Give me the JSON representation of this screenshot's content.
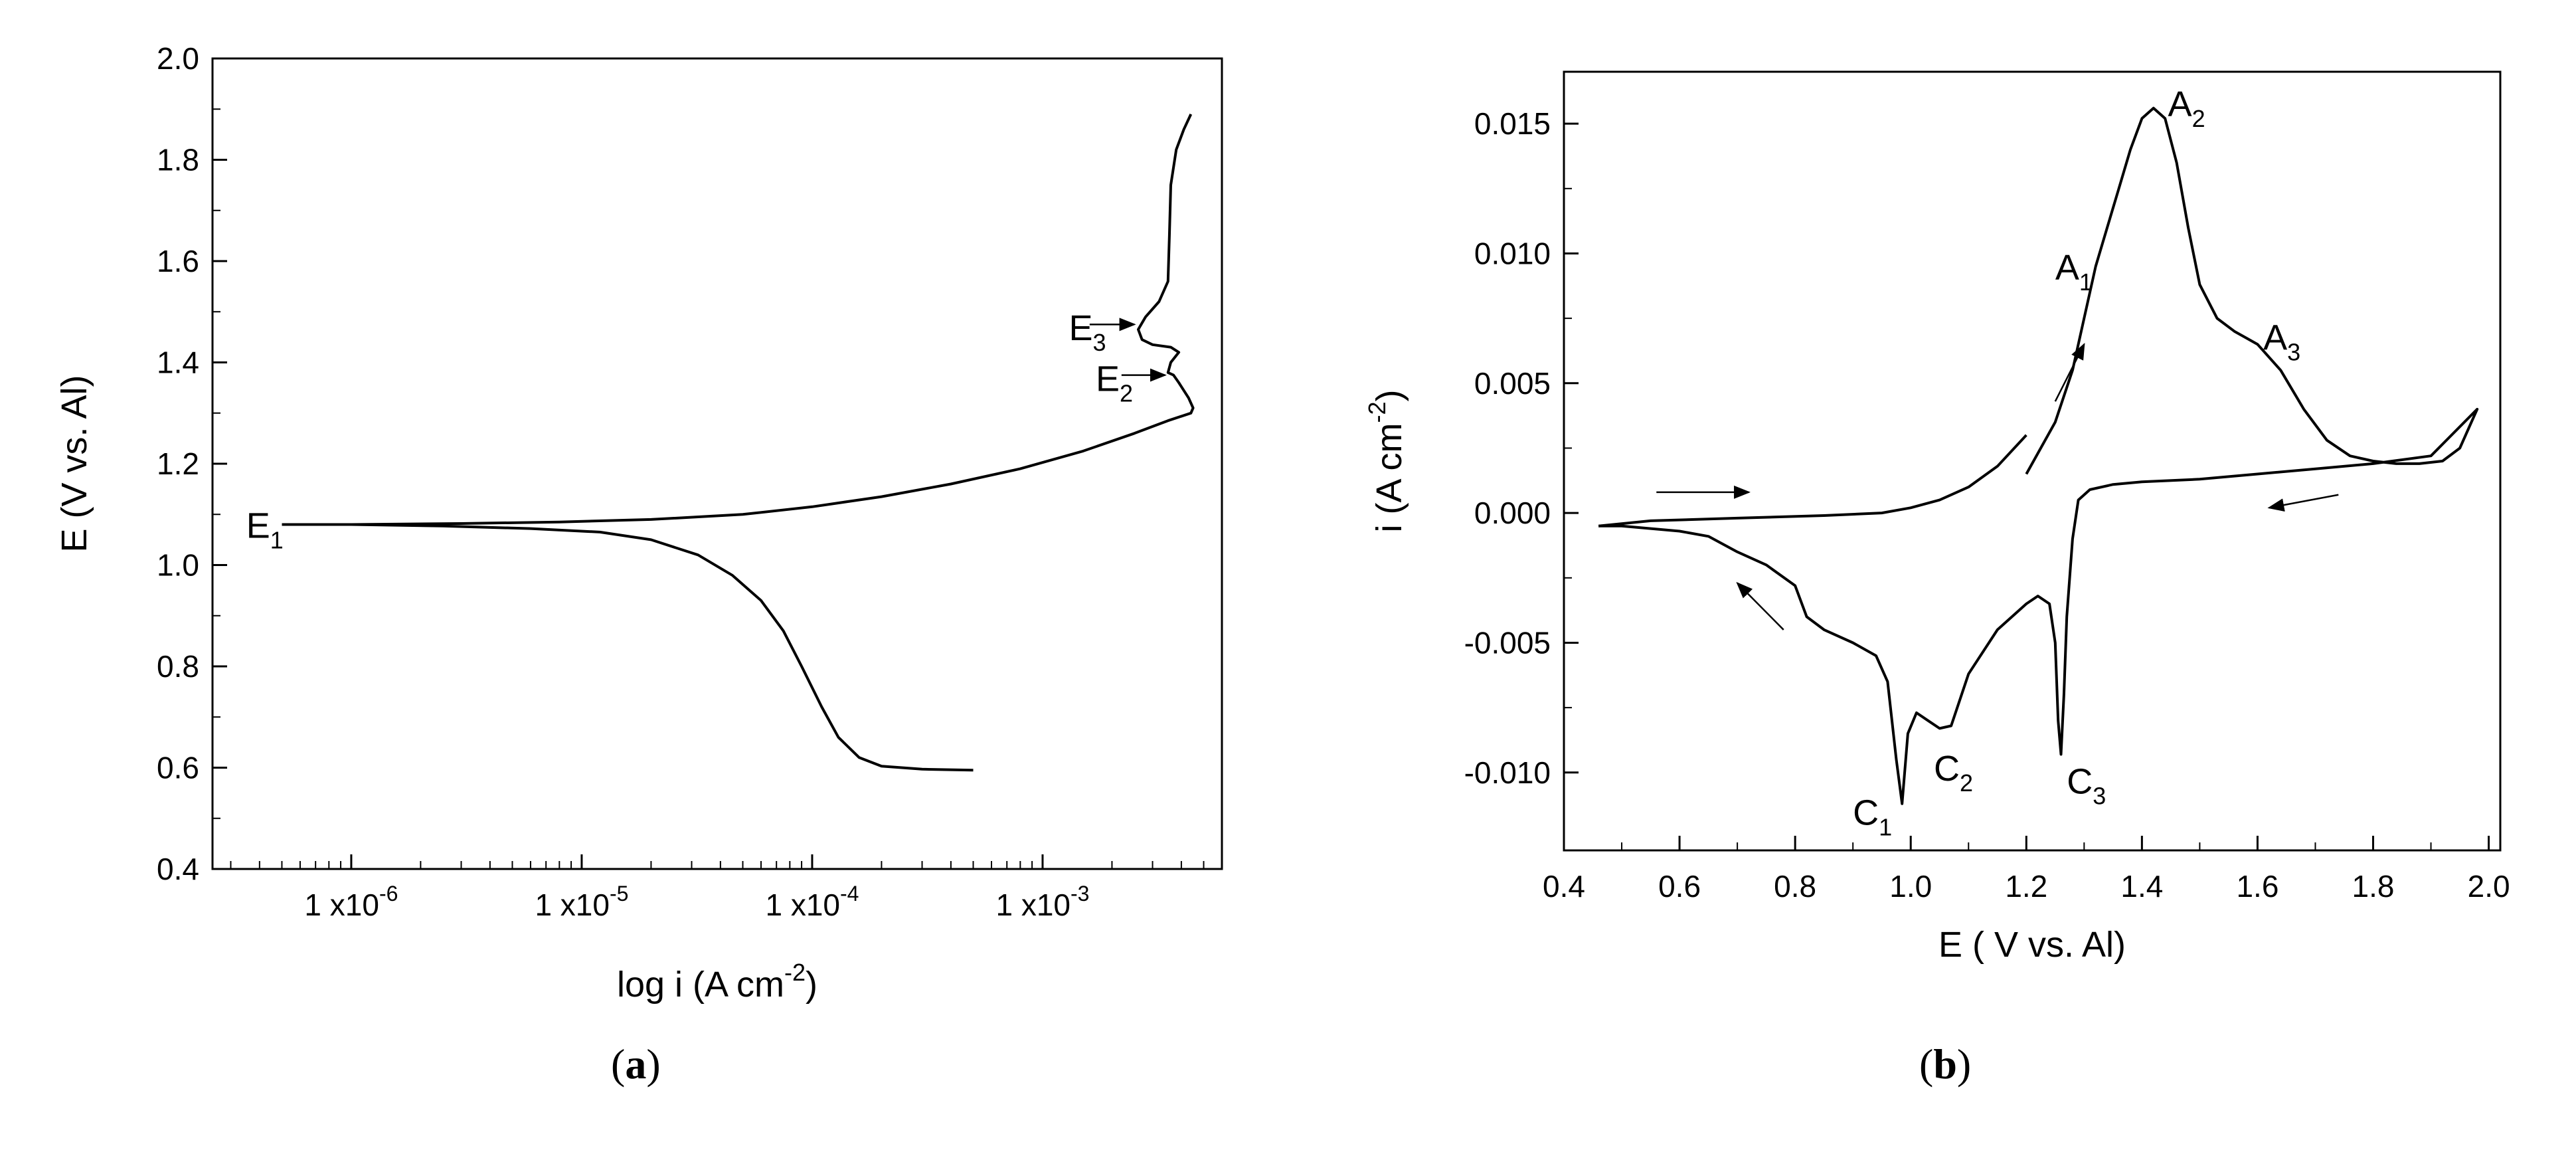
{
  "chart_data": [
    {
      "type": "line",
      "panel_label": "a",
      "xlabel": "log i (A cm",
      "xlabel_sup": "-2",
      "xlabel_tail": ")",
      "ylabel": "E (V vs. Al)",
      "xscale": "log",
      "xlim": [
        2.5e-07,
        0.006
      ],
      "ylim": [
        0.4,
        2.0
      ],
      "yticks": [
        "0.4",
        "0.6",
        "0.8",
        "1.0",
        "1.2",
        "1.4",
        "1.6",
        "1.8",
        "2.0"
      ],
      "xticks": [
        {
          "value": 1e-06,
          "base": "1 x10",
          "exp": "-6"
        },
        {
          "value": 1e-05,
          "base": "1 x10",
          "exp": "-5"
        },
        {
          "value": 0.0001,
          "base": "1 x10",
          "exp": "-4"
        },
        {
          "value": 0.001,
          "base": "1 x10",
          "exp": "-3"
        }
      ],
      "series": [
        {
          "points": [
            [
              0.0005,
              0.595
            ],
            [
              0.0003,
              0.597
            ],
            [
              0.0002,
              0.603
            ],
            [
              0.00016,
              0.62
            ],
            [
              0.00013,
              0.66
            ],
            [
              0.00011,
              0.72
            ],
            [
              9e-05,
              0.8
            ],
            [
              7.5e-05,
              0.87
            ],
            [
              6e-05,
              0.93
            ],
            [
              4.5e-05,
              0.98
            ],
            [
              3.2e-05,
              1.02
            ],
            [
              2e-05,
              1.05
            ],
            [
              1.2e-05,
              1.065
            ],
            [
              6e-06,
              1.072
            ],
            [
              2.5e-06,
              1.077
            ],
            [
              1e-06,
              1.08
            ],
            [
              5e-07,
              1.08
            ]
          ]
        },
        {
          "points": [
            [
              5e-07,
              1.08
            ],
            [
              1e-06,
              1.08
            ],
            [
              3e-06,
              1.082
            ],
            [
              8e-06,
              1.085
            ],
            [
              2e-05,
              1.09
            ],
            [
              5e-05,
              1.1
            ],
            [
              0.0001,
              1.115
            ],
            [
              0.0002,
              1.135
            ],
            [
              0.0004,
              1.16
            ],
            [
              0.0008,
              1.19
            ],
            [
              0.0015,
              1.225
            ],
            [
              0.0025,
              1.26
            ],
            [
              0.0035,
              1.285
            ],
            [
              0.0044,
              1.3
            ],
            [
              0.0045,
              1.31
            ],
            [
              0.0043,
              1.33
            ],
            [
              0.0039,
              1.36
            ],
            [
              0.0037,
              1.375
            ],
            [
              0.0035,
              1.38
            ],
            [
              0.0036,
              1.4
            ],
            [
              0.0039,
              1.42
            ],
            [
              0.0036,
              1.43
            ],
            [
              0.003,
              1.435
            ],
            [
              0.0027,
              1.445
            ],
            [
              0.0026,
              1.465
            ],
            [
              0.0028,
              1.49
            ],
            [
              0.0032,
              1.52
            ],
            [
              0.0035,
              1.56
            ],
            [
              0.00355,
              1.65
            ],
            [
              0.0036,
              1.75
            ],
            [
              0.0038,
              1.82
            ],
            [
              0.0041,
              1.86
            ],
            [
              0.0044,
              1.89
            ]
          ]
        }
      ],
      "annotations": [
        {
          "base": "E",
          "sub": "1",
          "x": 3.5e-07,
          "y": 1.08,
          "arrow": false
        },
        {
          "base": "E",
          "sub": "2",
          "x": 0.0017,
          "y": 1.37,
          "arrow": true,
          "arrow_from": [
            0.0022,
            1.375
          ],
          "arrow_to": [
            0.0034,
            1.375
          ]
        },
        {
          "base": "E",
          "sub": "3",
          "x": 0.0013,
          "y": 1.47,
          "arrow": true,
          "arrow_from": [
            0.0016,
            1.475
          ],
          "arrow_to": [
            0.0025,
            1.475
          ]
        }
      ]
    },
    {
      "type": "line",
      "panel_label": "b",
      "xlabel": "E ( V vs. Al)",
      "ylabel": "i (A cm",
      "ylabel_sup": "-2",
      "ylabel_tail": ")",
      "xlim": [
        0.4,
        2.02
      ],
      "ylim": [
        -0.013,
        0.017
      ],
      "xticks": [
        "0.4",
        "0.6",
        "0.8",
        "1.0",
        "1.2",
        "1.4",
        "1.6",
        "1.8",
        "2.0"
      ],
      "yticks": [
        "-0.010",
        "-0.005",
        "0.000",
        "0.005",
        "0.010",
        "0.015"
      ],
      "series": [
        {
          "points": [
            [
              0.46,
              -0.0005
            ],
            [
              0.55,
              -0.0003
            ],
            [
              0.7,
              -0.0002
            ],
            [
              0.85,
              -0.0001
            ],
            [
              0.95,
              0.0
            ],
            [
              1.0,
              0.0002
            ],
            [
              1.05,
              0.0005
            ],
            [
              1.1,
              0.001
            ],
            [
              1.15,
              0.0018
            ],
            [
              1.2,
              0.003
            ]
          ]
        },
        {
          "points": [
            [
              1.2,
              0.0015
            ],
            [
              1.25,
              0.0035
            ],
            [
              1.28,
              0.0055
            ],
            [
              1.3,
              0.0075
            ],
            [
              1.32,
              0.0095
            ],
            [
              1.34,
              0.011
            ],
            [
              1.36,
              0.0125
            ],
            [
              1.38,
              0.014
            ],
            [
              1.4,
              0.0152
            ],
            [
              1.42,
              0.0156
            ],
            [
              1.44,
              0.0152
            ],
            [
              1.46,
              0.0135
            ],
            [
              1.48,
              0.011
            ],
            [
              1.5,
              0.0088
            ],
            [
              1.53,
              0.0075
            ],
            [
              1.56,
              0.007
            ],
            [
              1.6,
              0.0065
            ],
            [
              1.64,
              0.0055
            ],
            [
              1.68,
              0.004
            ],
            [
              1.72,
              0.0028
            ],
            [
              1.76,
              0.0022
            ],
            [
              1.8,
              0.002
            ],
            [
              1.84,
              0.0019
            ],
            [
              1.88,
              0.0019
            ],
            [
              1.92,
              0.002
            ],
            [
              1.95,
              0.0025
            ],
            [
              1.98,
              0.004
            ],
            [
              1.9,
              0.0022
            ],
            [
              1.8,
              0.0019
            ],
            [
              1.7,
              0.0017
            ],
            [
              1.6,
              0.0015
            ],
            [
              1.5,
              0.0013
            ],
            [
              1.4,
              0.0012
            ],
            [
              1.35,
              0.0011
            ],
            [
              1.31,
              0.0009
            ],
            [
              1.29,
              0.0005
            ],
            [
              1.28,
              -0.001
            ],
            [
              1.27,
              -0.004
            ],
            [
              1.265,
              -0.007
            ],
            [
              1.26,
              -0.0093
            ],
            [
              1.255,
              -0.008
            ],
            [
              1.25,
              -0.005
            ],
            [
              1.24,
              -0.0035
            ],
            [
              1.22,
              -0.0032
            ],
            [
              1.2,
              -0.0035
            ],
            [
              1.15,
              -0.0045
            ],
            [
              1.1,
              -0.0062
            ],
            [
              1.07,
              -0.0082
            ],
            [
              1.05,
              -0.0083
            ],
            [
              1.03,
              -0.008
            ],
            [
              1.01,
              -0.0077
            ],
            [
              0.995,
              -0.0085
            ],
            [
              0.985,
              -0.0112
            ],
            [
              0.975,
              -0.0095
            ],
            [
              0.96,
              -0.0065
            ],
            [
              0.94,
              -0.0055
            ],
            [
              0.9,
              -0.005
            ],
            [
              0.85,
              -0.0045
            ],
            [
              0.82,
              -0.004
            ],
            [
              0.8,
              -0.0028
            ],
            [
              0.75,
              -0.002
            ],
            [
              0.7,
              -0.0015
            ],
            [
              0.65,
              -0.0009
            ],
            [
              0.6,
              -0.0007
            ],
            [
              0.55,
              -0.0006
            ],
            [
              0.5,
              -0.0005
            ],
            [
              0.46,
              -0.0005
            ]
          ]
        }
      ],
      "annotations": [
        {
          "base": "A",
          "sub": "1",
          "x": 1.25,
          "y": 0.0095
        },
        {
          "base": "A",
          "sub": "2",
          "x": 1.445,
          "y": 0.0158
        },
        {
          "base": "A",
          "sub": "3",
          "x": 1.61,
          "y": 0.0068
        },
        {
          "base": "C",
          "sub": "1",
          "x": 0.9,
          "y": -0.0115
        },
        {
          "base": "C",
          "sub": "2",
          "x": 1.04,
          "y": -0.0098
        },
        {
          "base": "C",
          "sub": "3",
          "x": 1.27,
          "y": -0.0103
        }
      ],
      "arrows": [
        {
          "from": [
            0.56,
            0.0008
          ],
          "to": [
            0.72,
            0.0008
          ]
        },
        {
          "from": [
            1.25,
            0.0043
          ],
          "to": [
            1.3,
            0.0065
          ]
        },
        {
          "from": [
            1.74,
            0.0007
          ],
          "to": [
            1.62,
            0.0002
          ]
        },
        {
          "from": [
            0.78,
            -0.0045
          ],
          "to": [
            0.7,
            -0.0027
          ]
        }
      ]
    }
  ]
}
